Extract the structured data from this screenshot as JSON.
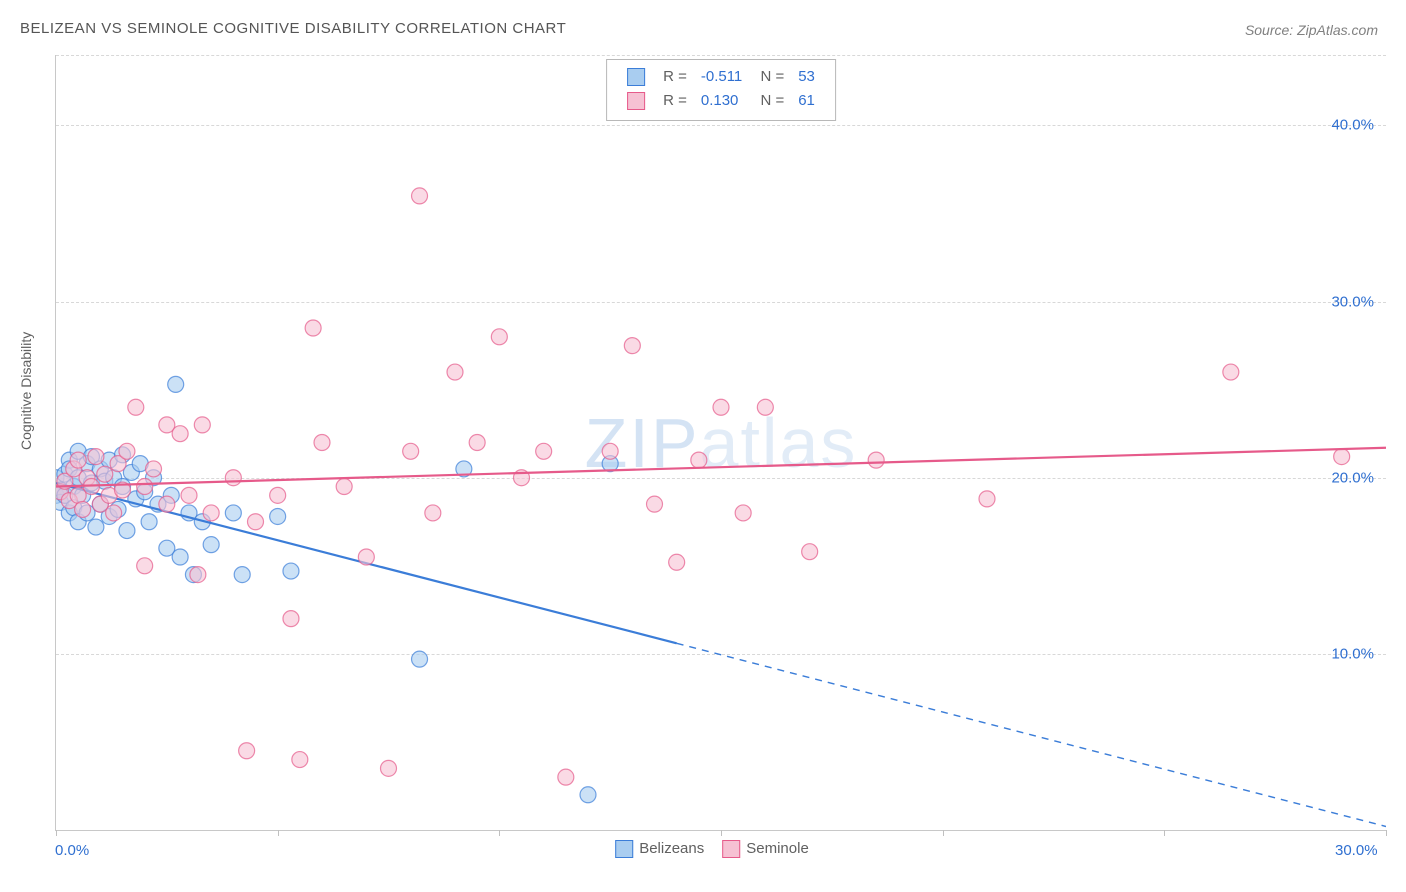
{
  "title": "BELIZEAN VS SEMINOLE COGNITIVE DISABILITY CORRELATION CHART",
  "source": "Source: ZipAtlas.com",
  "ylabel": "Cognitive Disability",
  "watermark_bold": "ZIP",
  "watermark_thin": "atlas",
  "chart": {
    "type": "scatter",
    "background_color": "#ffffff",
    "grid_color": "#d8d8d8",
    "axis_color": "#c8c8c8",
    "tick_label_color": "#2f6fd0",
    "label_fontsize": 14,
    "tick_fontsize": 15,
    "title_fontsize": 15,
    "xlim": [
      0,
      30
    ],
    "ylim": [
      0,
      44
    ],
    "y_gridlines": [
      10,
      20,
      30,
      40,
      44
    ],
    "y_tick_labels": {
      "10": "10.0%",
      "20": "20.0%",
      "30": "30.0%",
      "40": "40.0%"
    },
    "x_ticks": [
      0,
      5,
      10,
      15,
      20,
      25,
      30
    ],
    "x_tick_labels": {
      "0": "0.0%",
      "30": "30.0%"
    },
    "marker_radius": 8,
    "marker_fill_opacity": 0.25,
    "marker_stroke_width": 1.2,
    "line_width": 2.2,
    "series": [
      {
        "name": "Belizeans",
        "stroke": "#3b7dd8",
        "fill": "#a9cdf0",
        "r": "-0.511",
        "n": "53",
        "regression": {
          "x0": 0,
          "y0": 19.7,
          "x1": 14,
          "y1": 10.6,
          "x1_ext": 30,
          "y1_ext": 0.2,
          "dashed_extension": true
        },
        "points": [
          [
            0.0,
            19.0
          ],
          [
            0.0,
            20.0
          ],
          [
            0.1,
            19.3
          ],
          [
            0.1,
            18.6
          ],
          [
            0.2,
            20.2
          ],
          [
            0.2,
            19.0
          ],
          [
            0.3,
            21.0
          ],
          [
            0.3,
            18.0
          ],
          [
            0.3,
            20.5
          ],
          [
            0.4,
            19.5
          ],
          [
            0.4,
            18.3
          ],
          [
            0.5,
            21.5
          ],
          [
            0.5,
            17.5
          ],
          [
            0.5,
            20.0
          ],
          [
            0.6,
            19.0
          ],
          [
            0.7,
            20.8
          ],
          [
            0.7,
            18.0
          ],
          [
            0.8,
            19.7
          ],
          [
            0.8,
            21.2
          ],
          [
            0.9,
            17.2
          ],
          [
            1.0,
            20.5
          ],
          [
            1.0,
            18.5
          ],
          [
            1.1,
            19.8
          ],
          [
            1.2,
            21.0
          ],
          [
            1.2,
            17.8
          ],
          [
            1.3,
            20.0
          ],
          [
            1.4,
            18.2
          ],
          [
            1.5,
            19.5
          ],
          [
            1.5,
            21.3
          ],
          [
            1.6,
            17.0
          ],
          [
            1.7,
            20.3
          ],
          [
            1.8,
            18.8
          ],
          [
            1.9,
            20.8
          ],
          [
            2.0,
            19.2
          ],
          [
            2.1,
            17.5
          ],
          [
            2.2,
            20.0
          ],
          [
            2.3,
            18.5
          ],
          [
            2.5,
            16.0
          ],
          [
            2.6,
            19.0
          ],
          [
            2.7,
            25.3
          ],
          [
            2.8,
            15.5
          ],
          [
            3.0,
            18.0
          ],
          [
            3.1,
            14.5
          ],
          [
            3.3,
            17.5
          ],
          [
            3.5,
            16.2
          ],
          [
            4.0,
            18.0
          ],
          [
            4.2,
            14.5
          ],
          [
            5.0,
            17.8
          ],
          [
            5.3,
            14.7
          ],
          [
            8.2,
            9.7
          ],
          [
            9.2,
            20.5
          ],
          [
            12.0,
            2.0
          ],
          [
            12.5,
            20.8
          ]
        ]
      },
      {
        "name": "Seminole",
        "stroke": "#e65a8a",
        "fill": "#f6c1d3",
        "r": "0.130",
        "n": "61",
        "regression": {
          "x0": 0,
          "y0": 19.5,
          "x1": 30,
          "y1": 21.7,
          "dashed_extension": false
        },
        "points": [
          [
            0.1,
            19.2
          ],
          [
            0.2,
            19.8
          ],
          [
            0.3,
            18.7
          ],
          [
            0.4,
            20.5
          ],
          [
            0.5,
            19.0
          ],
          [
            0.5,
            21.0
          ],
          [
            0.6,
            18.2
          ],
          [
            0.7,
            20.0
          ],
          [
            0.8,
            19.5
          ],
          [
            0.9,
            21.2
          ],
          [
            1.0,
            18.5
          ],
          [
            1.1,
            20.2
          ],
          [
            1.2,
            19.0
          ],
          [
            1.3,
            18.0
          ],
          [
            1.4,
            20.8
          ],
          [
            1.5,
            19.3
          ],
          [
            1.6,
            21.5
          ],
          [
            1.8,
            24.0
          ],
          [
            2.0,
            19.5
          ],
          [
            2.0,
            15.0
          ],
          [
            2.2,
            20.5
          ],
          [
            2.5,
            18.5
          ],
          [
            2.5,
            23.0
          ],
          [
            2.8,
            22.5
          ],
          [
            3.0,
            19.0
          ],
          [
            3.2,
            14.5
          ],
          [
            3.3,
            23.0
          ],
          [
            3.5,
            18.0
          ],
          [
            4.0,
            20.0
          ],
          [
            4.3,
            4.5
          ],
          [
            4.5,
            17.5
          ],
          [
            5.0,
            19.0
          ],
          [
            5.3,
            12.0
          ],
          [
            5.5,
            4.0
          ],
          [
            5.8,
            28.5
          ],
          [
            6.0,
            22.0
          ],
          [
            6.5,
            19.5
          ],
          [
            7.0,
            15.5
          ],
          [
            7.5,
            3.5
          ],
          [
            8.0,
            21.5
          ],
          [
            8.2,
            36.0
          ],
          [
            8.5,
            18.0
          ],
          [
            9.0,
            26.0
          ],
          [
            9.5,
            22.0
          ],
          [
            10.0,
            28.0
          ],
          [
            10.5,
            20.0
          ],
          [
            11.0,
            21.5
          ],
          [
            11.5,
            3.0
          ],
          [
            12.5,
            21.5
          ],
          [
            13.0,
            27.5
          ],
          [
            13.5,
            18.5
          ],
          [
            14.0,
            15.2
          ],
          [
            14.5,
            21.0
          ],
          [
            15.0,
            24.0
          ],
          [
            15.5,
            18.0
          ],
          [
            16.0,
            24.0
          ],
          [
            17.0,
            15.8
          ],
          [
            18.5,
            21.0
          ],
          [
            21.0,
            18.8
          ],
          [
            26.5,
            26.0
          ],
          [
            29.0,
            21.2
          ]
        ]
      }
    ],
    "bottom_legend": [
      {
        "label": "Belizeans",
        "stroke": "#3b7dd8",
        "fill": "#a9cdf0"
      },
      {
        "label": "Seminole",
        "stroke": "#e65a8a",
        "fill": "#f6c1d3"
      }
    ]
  }
}
